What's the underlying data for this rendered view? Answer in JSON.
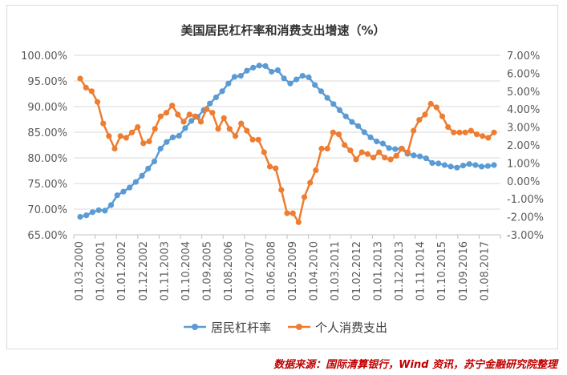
{
  "chart_data": {
    "type": "line",
    "title": "美国居民杠杆率和消费支出增速（%）",
    "x_ticks": [
      "01.03.2000",
      "01.02.2001",
      "01.01.2002",
      "01.12.2002",
      "01.11.2003",
      "01.10.2004",
      "01.09.2005",
      "01.08.2006",
      "01.07.2007",
      "01.06.2008",
      "01.05.2009",
      "01.04.2010",
      "01.03.2011",
      "01.02.2012",
      "01.01.2013",
      "01.12.2013",
      "01.11.2014",
      "01.10.2015",
      "01.09.2016",
      "01.08.2017"
    ],
    "y_left": {
      "min": 65,
      "max": 100,
      "step": 5,
      "tick_labels": [
        "65.00%",
        "70.00%",
        "75.00%",
        "80.00%",
        "85.00%",
        "90.00%",
        "95.00%",
        "100.00%"
      ]
    },
    "y_right": {
      "min": -3,
      "max": 7,
      "step": 1,
      "tick_labels": [
        "-3.00%",
        "-2.00%",
        "-1.00%",
        "0.00%",
        "1.00%",
        "2.00%",
        "3.00%",
        "4.00%",
        "5.00%",
        "6.00%",
        "7.00%"
      ]
    },
    "grid": true,
    "legend_position": "bottom",
    "series": [
      {
        "name": "居民杠杆率",
        "axis": "left",
        "color": "#5b9bd5",
        "values": [
          68.5,
          68.8,
          69.4,
          69.8,
          69.7,
          70.8,
          72.7,
          73.4,
          74.2,
          75.3,
          76.5,
          77.9,
          79.3,
          81.8,
          83.1,
          84.0,
          84.3,
          85.8,
          87.2,
          88.0,
          89.3,
          90.6,
          91.8,
          93.0,
          94.5,
          95.8,
          96.0,
          97.0,
          97.6,
          98.0,
          97.9,
          96.8,
          97.1,
          95.5,
          94.5,
          95.3,
          96.0,
          95.7,
          94.2,
          93.0,
          91.7,
          90.5,
          89.3,
          88.1,
          87.0,
          86.2,
          85.0,
          84.0,
          83.2,
          82.8,
          81.9,
          81.7,
          81.8,
          80.8,
          80.5,
          80.3,
          79.9,
          79.0,
          78.9,
          78.6,
          78.3,
          78.1,
          78.5,
          78.8,
          78.6,
          78.3,
          78.4,
          78.6
        ]
      },
      {
        "name": "个人消费支出",
        "axis": "right",
        "color": "#ed7d31",
        "values": [
          5.7,
          5.2,
          5.0,
          4.4,
          3.2,
          2.5,
          1.8,
          2.5,
          2.4,
          2.7,
          3.0,
          2.1,
          2.2,
          2.9,
          3.6,
          3.8,
          4.2,
          3.7,
          3.3,
          3.7,
          3.6,
          3.3,
          4.0,
          3.8,
          2.9,
          3.5,
          2.9,
          2.5,
          3.2,
          2.8,
          2.3,
          2.3,
          1.6,
          0.8,
          0.7,
          -0.5,
          -1.8,
          -1.8,
          -2.3,
          -0.9,
          -0.1,
          0.6,
          1.8,
          1.8,
          2.7,
          2.6,
          2.0,
          1.7,
          1.2,
          1.6,
          1.5,
          1.3,
          1.6,
          1.3,
          1.2,
          1.4,
          1.8,
          1.6,
          2.8,
          3.4,
          3.7,
          4.3,
          4.1,
          3.6,
          3.0,
          2.7,
          2.7,
          2.7,
          2.8,
          2.6,
          2.5,
          2.4,
          2.7
        ]
      }
    ],
    "source": "数据来源：国际清算银行，Wind 资讯，苏宁金融研究院整理"
  }
}
